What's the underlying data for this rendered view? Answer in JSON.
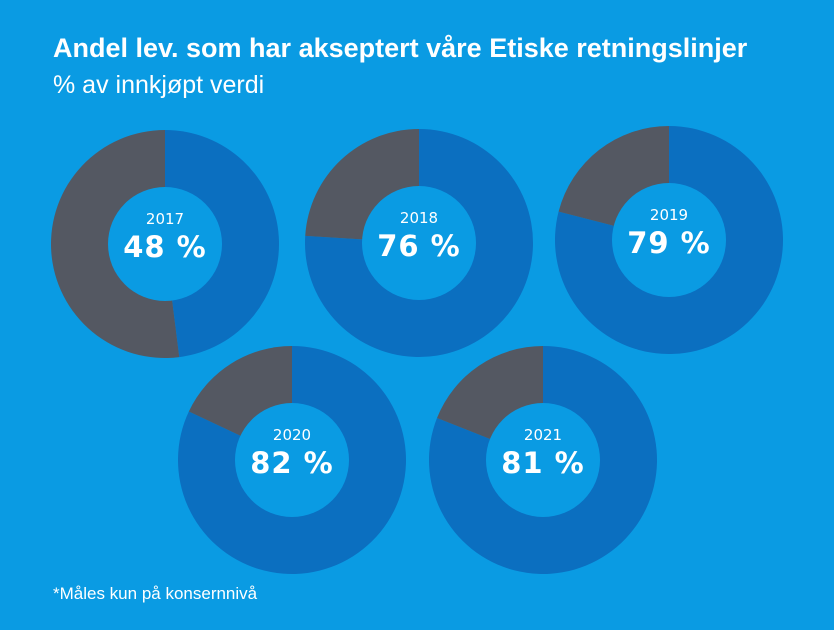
{
  "title": "Andel lev. som har akseptert våre Etiske retningslinjer",
  "subtitle": "% av innkjøpt verdi",
  "footnote": "*Måles kun på konsernnivå",
  "colors": {
    "background": "#0a9be3",
    "filled": "#0b6fc0",
    "remainder": "#545862",
    "hole": "#0a9be3"
  },
  "chart_data": {
    "type": "pie",
    "variant": "donut",
    "title": "Andel lev. som har akseptert våre Etiske retningslinjer",
    "subtitle": "% av innkjøpt verdi",
    "unit": "%",
    "categories": [
      "2017",
      "2018",
      "2019",
      "2020",
      "2021"
    ],
    "values": [
      48,
      76,
      79,
      82,
      81
    ],
    "labels": [
      "48 %",
      "76 %",
      "79 %",
      "82 %",
      "81 %"
    ]
  }
}
